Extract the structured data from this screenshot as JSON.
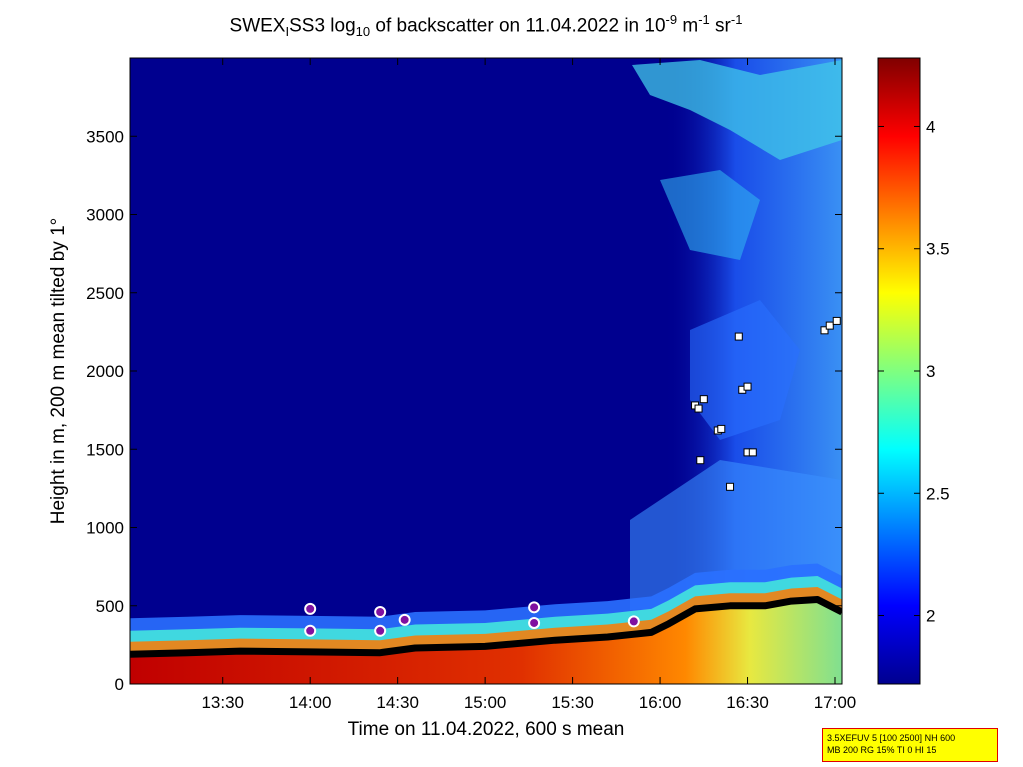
{
  "title": {
    "prefix": "SWEX",
    "sub1": "I",
    "mid": "SS3 log",
    "sub2": "10",
    "rest": " of backscatter on 11.04.2022 in 10",
    "sup1": "-9",
    "unit_m": " m",
    "sup2": "-1",
    "unit_sr": " sr",
    "sup3": "-1"
  },
  "chart_data": {
    "type": "heatmap",
    "xlabel": "Time on 11.04.2022, 600 s mean",
    "ylabel": "Height in m, 200 m mean tilted by 1°",
    "x_ticks": [
      "13:30",
      "14:00",
      "14:30",
      "15:00",
      "15:30",
      "16:00",
      "16:30",
      "17:00"
    ],
    "x_tick_hours": [
      13.5,
      14.0,
      14.5,
      15.0,
      15.5,
      16.0,
      16.5,
      17.0
    ],
    "xlim_hours": [
      12.97,
      17.04
    ],
    "y_ticks": [
      0,
      500,
      1000,
      1500,
      2000,
      2500,
      3000,
      3500
    ],
    "ylim": [
      0,
      4000
    ],
    "colorbar": {
      "ticks": [
        2,
        2.5,
        3,
        3.5,
        4
      ],
      "tick_labels": [
        "2",
        "2.5",
        "3",
        "3.5",
        "4"
      ],
      "range": [
        1.72,
        4.28
      ],
      "colormap": "jet"
    },
    "colors": {
      "background": "#00008f",
      "aerosol_layer": "#cc1800",
      "surface_layer": "#b0e060",
      "mixing_layer_line": "#000000",
      "cloud_marker": "#ffffff"
    },
    "mixing_layer_height": {
      "time": [
        12.97,
        13.3,
        13.6,
        14.0,
        14.4,
        14.6,
        15.0,
        15.4,
        15.7,
        15.95,
        16.05,
        16.2,
        16.4,
        16.6,
        16.75,
        16.9,
        17.04
      ],
      "height": [
        190,
        200,
        210,
        205,
        200,
        230,
        240,
        280,
        300,
        330,
        385,
        480,
        500,
        500,
        530,
        540,
        460
      ]
    },
    "cloud_base_points": [
      {
        "time": 16.2,
        "height": 1780
      },
      {
        "time": 16.22,
        "height": 1760
      },
      {
        "time": 16.25,
        "height": 1820
      },
      {
        "time": 16.23,
        "height": 1430
      },
      {
        "time": 16.33,
        "height": 1620
      },
      {
        "time": 16.35,
        "height": 1630
      },
      {
        "time": 16.4,
        "height": 1260
      },
      {
        "time": 16.47,
        "height": 1880
      },
      {
        "time": 16.5,
        "height": 1900
      },
      {
        "time": 16.5,
        "height": 1480
      },
      {
        "time": 16.53,
        "height": 1480
      },
      {
        "time": 16.45,
        "height": 2220
      },
      {
        "time": 16.94,
        "height": 2260
      },
      {
        "time": 16.97,
        "height": 2290
      },
      {
        "time": 17.01,
        "height": 2320
      }
    ],
    "aerosol_top_markers": [
      {
        "time": 14.0,
        "height": 480
      },
      {
        "time": 14.4,
        "height": 460
      },
      {
        "time": 14.54,
        "height": 410
      },
      {
        "time": 15.28,
        "height": 490
      },
      {
        "time": 15.85,
        "height": 400
      },
      {
        "time": 14.4,
        "height": 340
      },
      {
        "time": 14.0,
        "height": 340
      },
      {
        "time": 15.28,
        "height": 390
      }
    ]
  },
  "param_box": {
    "line1": "3.5XEFUV 5 [100 2500] NH 600",
    "line2": "MB 200 RG 15% TI 0 HI 15"
  }
}
